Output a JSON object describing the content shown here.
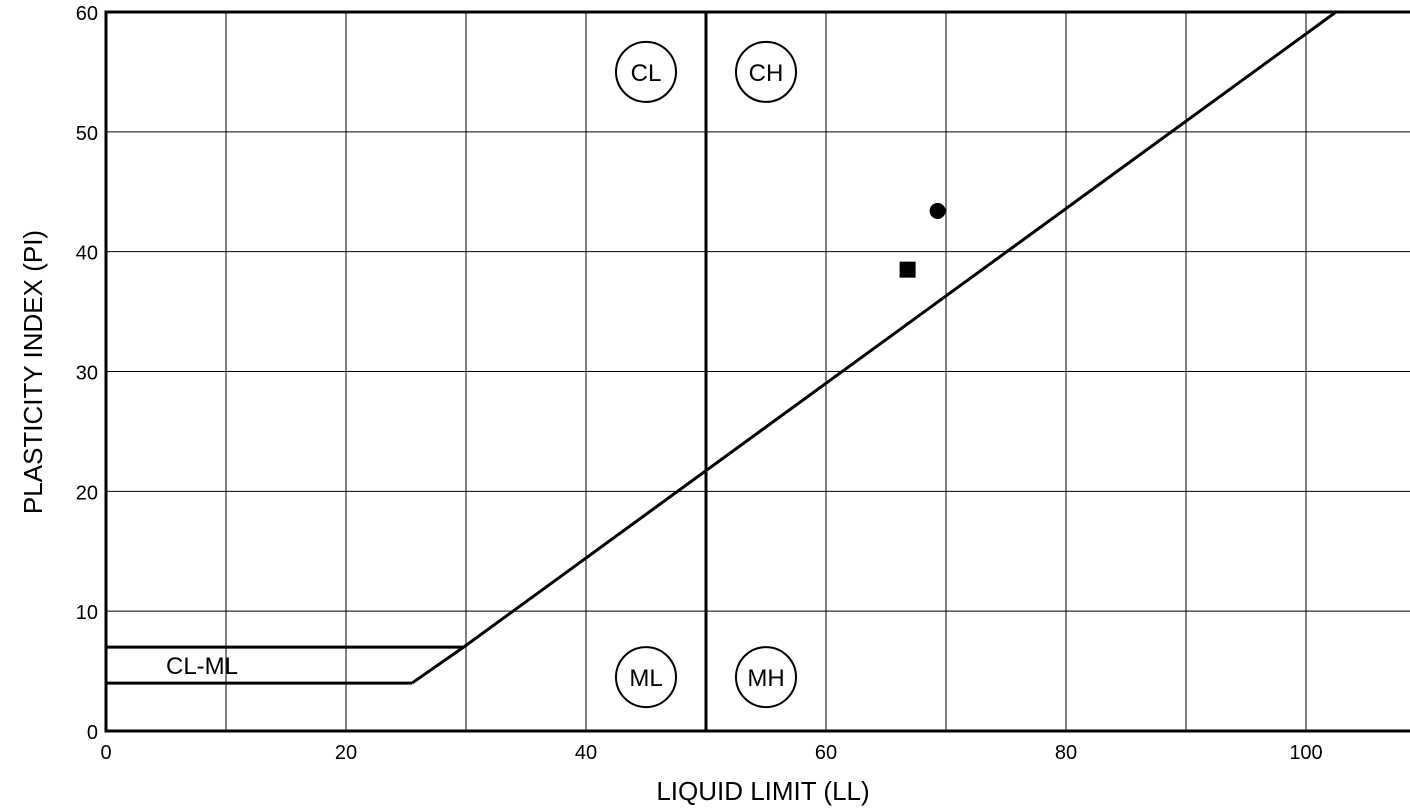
{
  "chart_data": {
    "type": "scatter",
    "title": "",
    "xlabel": "LIQUID LIMIT (LL)",
    "ylabel": "PLASTICITY INDEX (PI)",
    "xlim": [
      0,
      110
    ],
    "ylim": [
      0,
      60
    ],
    "x_ticks": [
      0,
      20,
      40,
      60,
      80,
      100
    ],
    "x_tick_labels": [
      "0",
      "20",
      "40",
      "60",
      "80",
      "100"
    ],
    "y_ticks": [
      0,
      10,
      20,
      30,
      40,
      50,
      60
    ],
    "y_tick_labels": [
      "0",
      "10",
      "20",
      "30",
      "40",
      "50",
      "60"
    ],
    "grid": true,
    "grid_x_step": 10,
    "grid_y_step": 10,
    "points": [
      {
        "marker": "circle",
        "x": 69.3,
        "y": 43.4
      },
      {
        "marker": "square",
        "x": 66.8,
        "y": 38.5
      }
    ],
    "reference_lines": {
      "a_line": [
        [
          25.5,
          4
        ],
        [
          29.8,
          7
        ],
        [
          102.5,
          60
        ]
      ],
      "cl_ml_upper": [
        [
          0,
          7
        ],
        [
          29.8,
          7
        ]
      ],
      "cl_ml_lower": [
        [
          0,
          4
        ],
        [
          25.5,
          4
        ]
      ],
      "ll_50": [
        [
          50,
          0
        ],
        [
          50,
          60
        ]
      ]
    },
    "zone_labels": [
      {
        "text": "CL",
        "circled": true,
        "x": 45,
        "y": 55
      },
      {
        "text": "CH",
        "circled": true,
        "x": 55,
        "y": 55
      },
      {
        "text": "ML",
        "circled": true,
        "x": 45,
        "y": 4.5
      },
      {
        "text": "MH",
        "circled": true,
        "x": 55,
        "y": 4.5
      },
      {
        "text": "CL-ML",
        "circled": false,
        "x": 8,
        "y": 5.5
      }
    ]
  }
}
